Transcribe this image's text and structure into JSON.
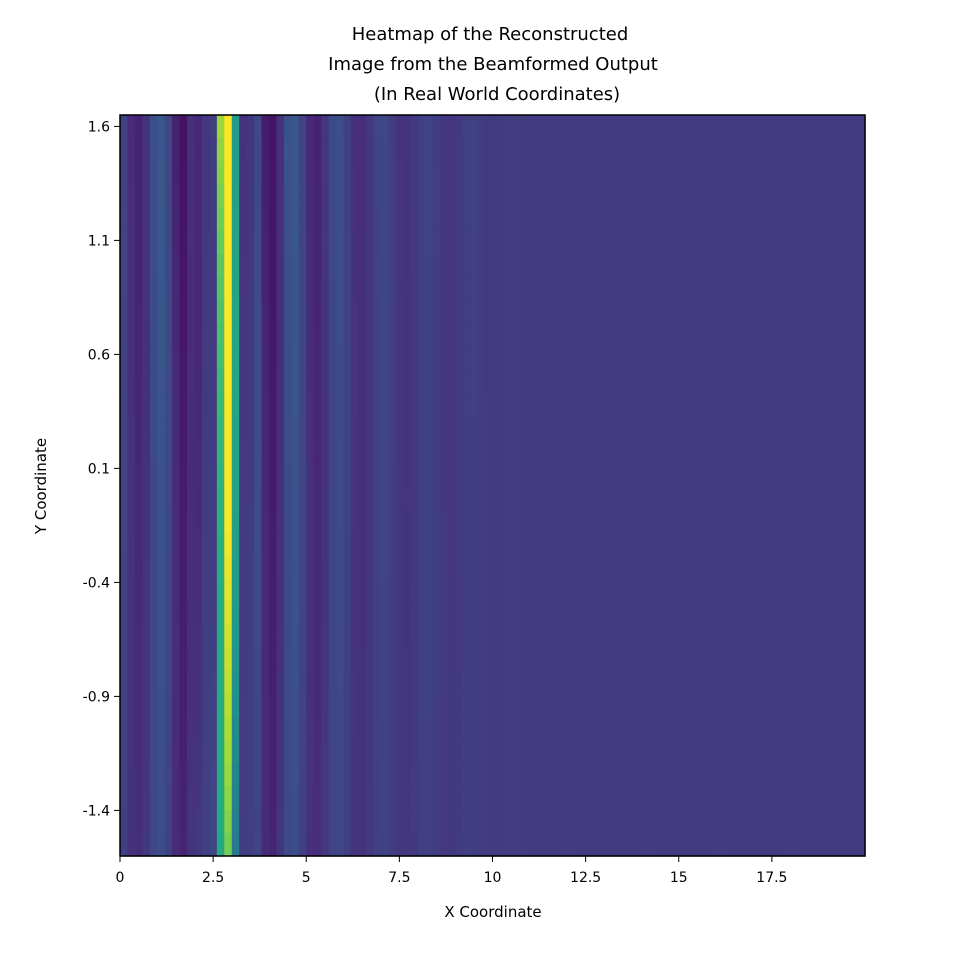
{
  "chart_data": {
    "type": "heatmap",
    "title": [
      "Heatmap of the Reconstructed",
      "Image from the Beamformed Output",
      "(In Real World Coordinates)"
    ],
    "xlabel": "X Coordinate",
    "ylabel": "Y Coordinate",
    "xlim": [
      0,
      20
    ],
    "ylim": [
      -1.6,
      1.65
    ],
    "x_ticks": [
      0,
      2.5,
      5,
      7.5,
      10,
      12.5,
      15,
      17.5
    ],
    "x_tick_labels": [
      "0",
      "2.5",
      "5",
      "7.5",
      "10",
      "12.5",
      "15",
      "17.5"
    ],
    "y_ticks": [
      1.6,
      1.1,
      0.6,
      0.1,
      -0.4,
      -0.9,
      -1.4
    ],
    "y_tick_labels": [
      "1.6",
      "1.1",
      "0.6",
      "0.1",
      "-0.4",
      "-0.9",
      "-1.4"
    ],
    "colormap": "viridis",
    "background_color": "#443983",
    "grid_resolution": [
      100,
      32
    ],
    "field": {
      "description_of_peak": "bright ridge near x≈3.0 at top, x≈2.9 at bottom, with alternating fringe bands decaying to background by x≈10",
      "ridge_x_top": 3.0,
      "ridge_x_bottom": 2.85,
      "ridge_peak_top": 1.0,
      "ridge_peak_bottom": 0.62,
      "fringe_period_x": 1.2,
      "fringe_decay_x": 9.5,
      "background_level": 0.18
    },
    "grid": false
  }
}
